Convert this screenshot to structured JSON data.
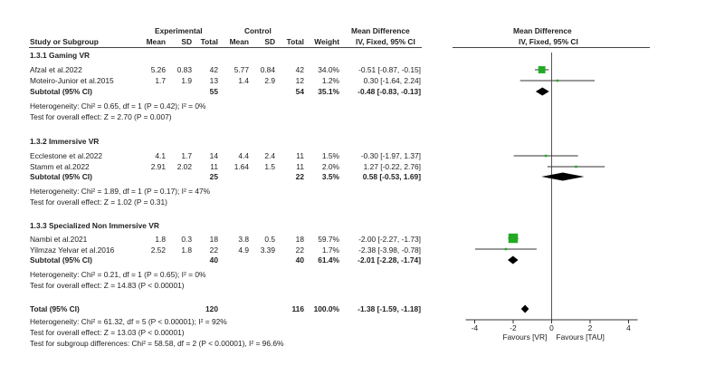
{
  "header": {
    "group_experimental": "Experimental",
    "group_control": "Control",
    "md_left_title": "Mean Difference",
    "md_left_sub": "IV, Fixed, 95% CI",
    "md_right_title": "Mean Difference",
    "md_right_sub": "IV, Fixed, 95% CI",
    "col_study": "Study or Subgroup",
    "col_mean_e": "Mean",
    "col_sd_e": "SD",
    "col_total_e": "Total",
    "col_mean_c": "Mean",
    "col_sd_c": "SD",
    "col_total_c": "Total",
    "col_weight": "Weight"
  },
  "groups": [
    {
      "title": "1.3.1 Gaming VR",
      "studies": [
        {
          "name": "Afzal et al.2022",
          "mean_e": "5.26",
          "sd_e": "0.83",
          "total_e": "42",
          "mean_c": "5.77",
          "sd_c": "0.84",
          "total_c": "42",
          "weight": "34.0%",
          "ci": "-0.51 [-0.87, -0.15]"
        },
        {
          "name": "Moteiro-Junior et al.2015",
          "mean_e": "1.7",
          "sd_e": "1.9",
          "total_e": "13",
          "mean_c": "1.4",
          "sd_c": "2.9",
          "total_c": "12",
          "weight": "1.2%",
          "ci": "0.30 [-1.64, 2.24]"
        }
      ],
      "subtotal": {
        "label": "Subtotal (95% CI)",
        "total_e": "55",
        "total_c": "54",
        "weight": "35.1%",
        "ci": "-0.48 [-0.83, -0.13]"
      },
      "heterogeneity": "Heterogeneity: Chi² = 0.65, df = 1 (P = 0.42); I² = 0%",
      "overall": "Test for overall effect: Z = 2.70 (P = 0.007)"
    },
    {
      "title": "1.3.2 Immersive VR",
      "studies": [
        {
          "name": "Ecclestone et al.2022",
          "mean_e": "4.1",
          "sd_e": "1.7",
          "total_e": "14",
          "mean_c": "4.4",
          "sd_c": "2.4",
          "total_c": "11",
          "weight": "1.5%",
          "ci": "-0.30 [-1.97, 1.37]"
        },
        {
          "name": "Stamm et al.2022",
          "mean_e": "2.91",
          "sd_e": "2.02",
          "total_e": "11",
          "mean_c": "1.64",
          "sd_c": "1.5",
          "total_c": "11",
          "weight": "2.0%",
          "ci": "1.27 [-0.22, 2.76]"
        }
      ],
      "subtotal": {
        "label": "Subtotal (95% CI)",
        "total_e": "25",
        "total_c": "22",
        "weight": "3.5%",
        "ci": "0.58 [-0.53, 1.69]"
      },
      "heterogeneity": "Heterogeneity: Chi² = 1.89, df = 1 (P = 0.17); I² = 47%",
      "overall": "Test for overall effect: Z = 1.02 (P = 0.31)"
    },
    {
      "title": "1.3.3 Specialized Non Immersive VR",
      "studies": [
        {
          "name": "Nambi et al.2021",
          "mean_e": "1.8",
          "sd_e": "0.3",
          "total_e": "18",
          "mean_c": "3.8",
          "sd_c": "0.5",
          "total_c": "18",
          "weight": "59.7%",
          "ci": "-2.00 [-2.27, -1.73]"
        },
        {
          "name": "Yilmzaz Yelvar et al.2016",
          "mean_e": "2.52",
          "sd_e": "1.8",
          "total_e": "22",
          "mean_c": "4.9",
          "sd_c": "3.39",
          "total_c": "22",
          "weight": "1.7%",
          "ci": "-2.38 [-3.98, -0.78]"
        }
      ],
      "subtotal": {
        "label": "Subtotal (95% CI)",
        "total_e": "40",
        "total_c": "40",
        "weight": "61.4%",
        "ci": "-2.01 [-2.28, -1.74]"
      },
      "heterogeneity": "Heterogeneity: Chi² = 0.21, df = 1 (P = 0.65); I² = 0%",
      "overall": "Test for overall effect: Z = 14.83 (P < 0.00001)"
    }
  ],
  "total": {
    "label": "Total (95% CI)",
    "total_e": "120",
    "total_c": "116",
    "weight": "100.0%",
    "ci": "-1.38 [-1.59, -1.18]",
    "heterogeneity": "Heterogeneity: Chi² = 61.32, df = 5 (P < 0.00001); I² = 92%",
    "overall": "Test for overall effect: Z = 13.03 (P < 0.00001)",
    "subgroup_diff": "Test for subgroup differences: Chi² = 58.58, df = 2 (P < 0.00001), I² = 96.6%"
  },
  "chart_data": {
    "type": "forest",
    "xlim": [
      -4,
      4
    ],
    "ticks": [
      -4,
      -2,
      0,
      2,
      4
    ],
    "favours_left": "Favours [VR]",
    "favours_right": "Favours [TAU]",
    "square_color": "#22aa22",
    "studies": [
      {
        "name": "Afzal et al.2022",
        "md": -0.51,
        "lo": -0.87,
        "hi": -0.15,
        "weight": 34.0
      },
      {
        "name": "Moteiro-Junior et al.2015",
        "md": 0.3,
        "lo": -1.64,
        "hi": 2.24,
        "weight": 1.2
      },
      {
        "name": "Ecclestone et al.2022",
        "md": -0.3,
        "lo": -1.97,
        "hi": 1.37,
        "weight": 1.5
      },
      {
        "name": "Stamm et al.2022",
        "md": 1.27,
        "lo": -0.22,
        "hi": 2.76,
        "weight": 2.0
      },
      {
        "name": "Nambi et al.2021",
        "md": -2.0,
        "lo": -2.27,
        "hi": -1.73,
        "weight": 59.7
      },
      {
        "name": "Yilmzaz Yelvar et al.2016",
        "md": -2.38,
        "lo": -3.98,
        "hi": -0.78,
        "weight": 1.7
      }
    ],
    "diamonds": [
      {
        "name": "Subtotal 1.3.1",
        "md": -0.48,
        "lo": -0.83,
        "hi": -0.13
      },
      {
        "name": "Subtotal 1.3.2",
        "md": 0.58,
        "lo": -0.53,
        "hi": 1.69
      },
      {
        "name": "Subtotal 1.3.3",
        "md": -2.01,
        "lo": -2.28,
        "hi": -1.74
      },
      {
        "name": "Total",
        "md": -1.38,
        "lo": -1.59,
        "hi": -1.18
      }
    ]
  }
}
